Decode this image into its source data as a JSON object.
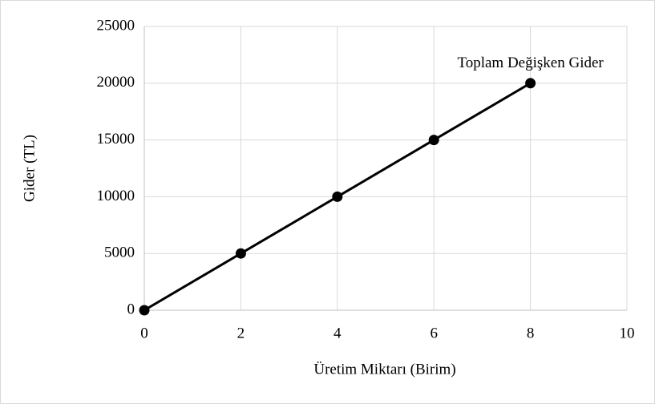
{
  "chart_data": {
    "type": "line",
    "x_label": "Üretim Miktarı (Birim)",
    "y_label": "Gider (TL)",
    "x": [
      0,
      2,
      4,
      6,
      8
    ],
    "series": [
      {
        "name": "Toplam Değişken Gider",
        "color": "#000000",
        "values": [
          0,
          5000,
          10000,
          15000,
          20000
        ]
      }
    ],
    "xlim": [
      0,
      10
    ],
    "xticks": [
      0,
      2,
      4,
      6,
      8,
      10
    ],
    "ylim": [
      0,
      25000
    ],
    "yticks": [
      0,
      5000,
      10000,
      15000,
      20000,
      25000
    ],
    "grid": true
  }
}
